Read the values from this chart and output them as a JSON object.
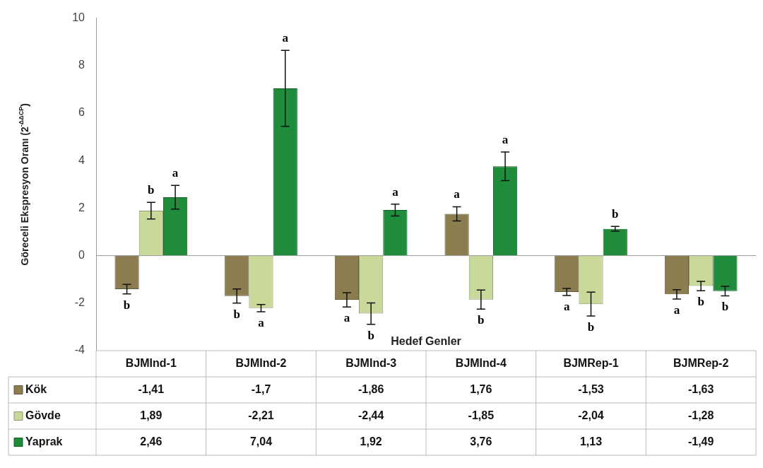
{
  "chart_data": {
    "type": "bar",
    "xlabel": "Hedef Genler",
    "ylabel": "Göreceli Ekspresyon Oranı (2$^{-ΔΔCP}$)",
    "categories": [
      "BJMInd-1",
      "BJMInd-2",
      "BJMInd-3",
      "BJMInd-4",
      "BJMRep-1",
      "BJMRep-2"
    ],
    "series": [
      {
        "name": "Kök",
        "color": "#8b7d4f",
        "values": [
          -1.41,
          -1.7,
          -1.86,
          1.76,
          -1.53,
          -1.63
        ],
        "value_labels": [
          "-1,41",
          "-1,7",
          "-1,86",
          "1,76",
          "-1,53",
          "-1,63"
        ],
        "errors": [
          0.2,
          0.3,
          0.3,
          0.3,
          0.15,
          0.2
        ]
      },
      {
        "name": "Gövde",
        "color": "#c9d99a",
        "values": [
          1.89,
          -2.21,
          -2.44,
          -1.85,
          -2.04,
          -1.28
        ],
        "value_labels": [
          "1,89",
          "-2,21",
          "-2,44",
          "-1,85",
          "-2,04",
          "-1,28"
        ],
        "errors": [
          0.35,
          0.15,
          0.45,
          0.4,
          0.5,
          0.2
        ]
      },
      {
        "name": "Yaprak",
        "color": "#1e8c3a",
        "values": [
          2.46,
          7.04,
          1.92,
          3.76,
          1.13,
          -1.49
        ],
        "value_labels": [
          "2,46",
          "7,04",
          "1,92",
          "3,76",
          "1,13",
          "-1,49"
        ],
        "errors": [
          0.5,
          1.6,
          0.25,
          0.6,
          0.1,
          0.2
        ]
      }
    ],
    "ylim": [
      -4,
      10
    ],
    "yticks": [
      -4,
      -2,
      0,
      2,
      4,
      6,
      8,
      10
    ],
    "legend": "bottom",
    "annotations": [
      "b",
      "b",
      "a",
      "b",
      "a",
      "a",
      "a",
      "b",
      "a",
      "a",
      "b",
      "a",
      "a",
      "b",
      "b",
      "a",
      "b",
      "b"
    ]
  }
}
